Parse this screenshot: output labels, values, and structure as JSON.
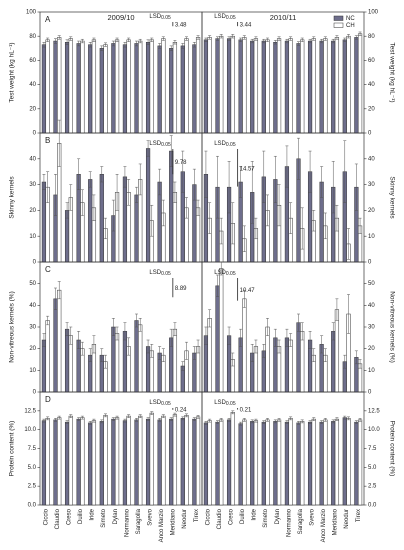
{
  "chart_data": [
    {
      "type": "bar",
      "letter": "A",
      "title": "2009/10",
      "ylabel": "Test weight (kg hL⁻¹)",
      "yaxis_side": "left",
      "ylim": [
        0,
        100
      ],
      "yticks": [
        0,
        20,
        40,
        60,
        80,
        100
      ],
      "lsd_label": "LSD",
      "lsd_level": "0.05",
      "lsd": 3.48,
      "series": [
        {
          "name": "NC",
          "color": "#6e6e8c",
          "values": [
            73,
            76,
            75,
            74,
            73,
            70,
            74,
            73,
            74,
            75,
            72,
            70,
            72,
            73
          ],
          "errors": [
            2,
            2,
            2,
            2,
            2,
            2,
            2,
            2,
            2,
            2,
            2,
            2,
            2,
            2
          ]
        },
        {
          "name": "CH",
          "color": "#ffffff",
          "values": [
            77,
            79,
            78,
            76,
            77,
            73,
            77,
            77,
            76,
            77,
            78,
            75,
            78,
            79
          ],
          "errors": [
            1.5,
            1.5,
            1.5,
            1.5,
            1.5,
            1.5,
            1.5,
            1.5,
            1.5,
            1.5,
            1.5,
            1.5,
            1.5,
            1.5
          ]
        }
      ]
    },
    {
      "type": "bar",
      "title": "2010/11",
      "ylabel": "Test weight (kg hL⁻¹)",
      "yaxis_side": "right",
      "ylim": [
        0,
        100
      ],
      "yticks": [
        0,
        20,
        40,
        60,
        80,
        100
      ],
      "lsd_label": "LSD",
      "lsd_level": "0.05",
      "lsd": 3.44,
      "legend": "upper right",
      "series": [
        {
          "name": "NC",
          "color": "#6e6e8c",
          "values": [
            77,
            78,
            78,
            77,
            76,
            76,
            75,
            76,
            74,
            76,
            76,
            76,
            77,
            79
          ],
          "errors": [
            1.5,
            1.5,
            1.5,
            1.5,
            1.5,
            1.5,
            1.5,
            1.5,
            1.5,
            1.5,
            1.5,
            1.5,
            1.5,
            1.5
          ]
        },
        {
          "name": "CH",
          "color": "#ffffff",
          "values": [
            79,
            80,
            80,
            79,
            78,
            77,
            78,
            78,
            77,
            78,
            78,
            79,
            80,
            82
          ],
          "errors": [
            1.5,
            1.5,
            1.5,
            1.5,
            1.5,
            1.5,
            1.5,
            1.5,
            1.5,
            1.5,
            1.5,
            1.5,
            1.5,
            1.5
          ]
        }
      ]
    },
    {
      "type": "bar",
      "letter": "B",
      "ylabel": "Skinny kernels",
      "yaxis_side": "left",
      "ylim": [
        0,
        50
      ],
      "yticks": [
        0,
        10,
        20,
        30,
        40
      ],
      "lsd_label": "LSD",
      "lsd_level": "0.05",
      "lsd": 9.78,
      "series": [
        {
          "name": "NC",
          "color": "#6e6e8c",
          "values": [
            31,
            26,
            20,
            34,
            32,
            34,
            18,
            33,
            26,
            44,
            31,
            43,
            35,
            30
          ],
          "errors": [
            3,
            8,
            3,
            6,
            3,
            3,
            6,
            4,
            3,
            3,
            5,
            6,
            8,
            6
          ]
        },
        {
          "name": "CH",
          "color": "#ffffff",
          "values": [
            29,
            46,
            25,
            23,
            21,
            13,
            27,
            27,
            32,
            16,
            19,
            27,
            21,
            21
          ],
          "errors": [
            6,
            9,
            5,
            5,
            5,
            4,
            7,
            5,
            6,
            6,
            5,
            4,
            4,
            3
          ]
        }
      ]
    },
    {
      "type": "bar",
      "ylabel": "Skinny kernels",
      "yaxis_side": "right",
      "ylim": [
        0,
        50
      ],
      "yticks": [
        0,
        10,
        20,
        30,
        40
      ],
      "lsd_label": "LSD",
      "lsd_level": "0.05",
      "lsd": 14.57,
      "series": [
        {
          "name": "NC",
          "color": "#6e6e8c",
          "values": [
            34,
            29,
            29,
            31,
            27,
            33,
            32,
            37,
            40,
            35,
            31,
            29,
            35,
            29
          ],
          "errors": [
            9,
            12,
            10,
            6,
            12,
            10,
            9,
            8,
            8,
            8,
            6,
            10,
            12,
            9
          ]
        },
        {
          "name": "CH",
          "color": "#ffffff",
          "values": [
            17,
            12,
            15,
            9,
            13,
            20,
            22,
            17,
            13,
            16,
            14,
            17,
            7,
            14
          ],
          "errors": [
            6,
            5,
            8,
            5,
            4,
            6,
            8,
            6,
            8,
            4,
            5,
            5,
            6,
            3
          ]
        }
      ]
    },
    {
      "type": "bar",
      "letter": "C",
      "ylabel": "Non-vitreous kernels (%)",
      "yaxis_side": "left",
      "ylim": [
        0,
        60
      ],
      "yticks": [
        0,
        10,
        20,
        30,
        40,
        50
      ],
      "lsd_label": "LSD",
      "lsd_level": "0.05",
      "lsd": 8.89,
      "series": [
        {
          "name": "NC",
          "color": "#6e6e8c",
          "values": [
            24,
            43,
            29,
            24,
            17,
            17,
            30,
            28,
            33,
            21,
            18,
            25,
            12,
            18
          ],
          "errors": [
            3,
            5,
            3,
            4,
            3,
            3,
            4,
            4,
            3,
            3,
            3,
            4,
            2,
            3
          ]
        },
        {
          "name": "CH",
          "color": "#ffffff",
          "values": [
            33,
            47,
            26,
            20,
            22,
            14,
            27,
            21,
            31,
            19,
            17,
            29,
            19,
            21
          ],
          "errors": [
            2,
            4,
            4,
            3,
            4,
            3,
            3,
            4,
            3,
            3,
            3,
            3,
            4,
            3
          ]
        }
      ]
    },
    {
      "type": "bar",
      "ylabel": "Non-vitreous kernels (%)",
      "yaxis_side": "right",
      "ylim": [
        0,
        60
      ],
      "yticks": [
        0,
        10,
        20,
        30,
        40,
        50
      ],
      "lsd_label": "LSD",
      "lsd_level": "0.05",
      "lsd": 10.47,
      "series": [
        {
          "name": "NC",
          "color": "#6e6e8c",
          "values": [
            26,
            49,
            26,
            25,
            18,
            19,
            25,
            25,
            32,
            24,
            22,
            28,
            14,
            16
          ],
          "errors": [
            4,
            5,
            4,
            4,
            4,
            3,
            4,
            4,
            4,
            4,
            4,
            4,
            3,
            3
          ]
        },
        {
          "name": "CH",
          "color": "#ffffff",
          "values": [
            34,
            57,
            15,
            43,
            21,
            30,
            21,
            24,
            28,
            17,
            17,
            38,
            36,
            13
          ],
          "errors": [
            4,
            3,
            3,
            4,
            3,
            4,
            3,
            3,
            4,
            3,
            3,
            5,
            9,
            2
          ]
        }
      ]
    },
    {
      "type": "bar",
      "letter": "D",
      "ylabel": "Protein content (%)",
      "yaxis_side": "left",
      "ylim": [
        0,
        15
      ],
      "yticks": [
        {
          "value": 0,
          "label": "0.0"
        },
        2.5,
        {
          "value": 5,
          "label": "5.0"
        },
        7.5,
        {
          "value": 10,
          "label": "10.0"
        },
        12.5
      ],
      "lsd_label": "LSD",
      "lsd_level": "0.05",
      "lsd": 0.24,
      "categories": [
        "Ciccio",
        "Claudio",
        "Creso",
        "Duilio",
        "Iride",
        "Simeto",
        "Dylan",
        "Normanno",
        "Saragolla",
        "Svevo",
        "Anco Marzio",
        "Meridiano",
        "Neodur",
        "Tirex"
      ],
      "series": [
        {
          "name": "NC",
          "color": "#6e6e8c",
          "values": [
            11.2,
            11.3,
            11.0,
            11.4,
            10.9,
            11.1,
            11.4,
            11.2,
            11.3,
            11.4,
            11.3,
            11.4,
            11.5,
            11.4
          ],
          "errors": [
            0.2,
            0.2,
            0.2,
            0.2,
            0.2,
            0.2,
            0.2,
            0.2,
            0.2,
            0.2,
            0.2,
            0.2,
            0.2,
            0.2
          ]
        },
        {
          "name": "CH",
          "color": "#ffffff",
          "values": [
            11.5,
            11.6,
            11.8,
            11.6,
            11.2,
            11.9,
            11.6,
            11.8,
            11.8,
            12.2,
            11.8,
            12.0,
            11.9,
            11.7
          ],
          "errors": [
            0.2,
            0.2,
            0.2,
            0.2,
            0.2,
            0.2,
            0.2,
            0.2,
            0.2,
            0.2,
            0.2,
            0.2,
            0.2,
            0.2
          ]
        }
      ]
    },
    {
      "type": "bar",
      "ylabel": "Protein content (%)",
      "yaxis_side": "right",
      "ylim": [
        0,
        15
      ],
      "yticks": [
        {
          "value": 0,
          "label": "0.0"
        },
        2.5,
        {
          "value": 5,
          "label": "5.0"
        },
        7.5,
        {
          "value": 10,
          "label": "10.0"
        },
        12.5
      ],
      "lsd_label": "LSD",
      "lsd_level": "0.05",
      "lsd": 0.21,
      "categories": [
        "Ciccio",
        "Claudio",
        "Creso",
        "Duilio",
        "Iride",
        "Simeto",
        "Dylan",
        "Normanno",
        "Saragolla",
        "Svevo",
        "Anco Marzio",
        "Meridiano",
        "Neodur",
        "Tirex"
      ],
      "series": [
        {
          "name": "NC",
          "color": "#6e6e8c",
          "values": [
            10.9,
            11.0,
            11.3,
            10.8,
            11.1,
            11.0,
            11.1,
            11.0,
            10.9,
            11.0,
            11.0,
            11.1,
            11.6,
            11.0
          ],
          "errors": [
            0.2,
            0.2,
            0.2,
            0.2,
            0.2,
            0.2,
            0.2,
            0.2,
            0.2,
            0.2,
            0.2,
            0.2,
            0.2,
            0.2
          ]
        },
        {
          "name": "CH",
          "color": "#ffffff",
          "values": [
            11.2,
            11.3,
            12.3,
            11.3,
            11.2,
            11.3,
            11.3,
            11.5,
            11.1,
            11.4,
            11.3,
            11.4,
            11.5,
            11.3
          ],
          "errors": [
            0.2,
            0.2,
            0.2,
            0.2,
            0.2,
            0.2,
            0.2,
            0.2,
            0.2,
            0.2,
            0.2,
            0.2,
            0.2,
            0.2
          ]
        }
      ]
    }
  ]
}
